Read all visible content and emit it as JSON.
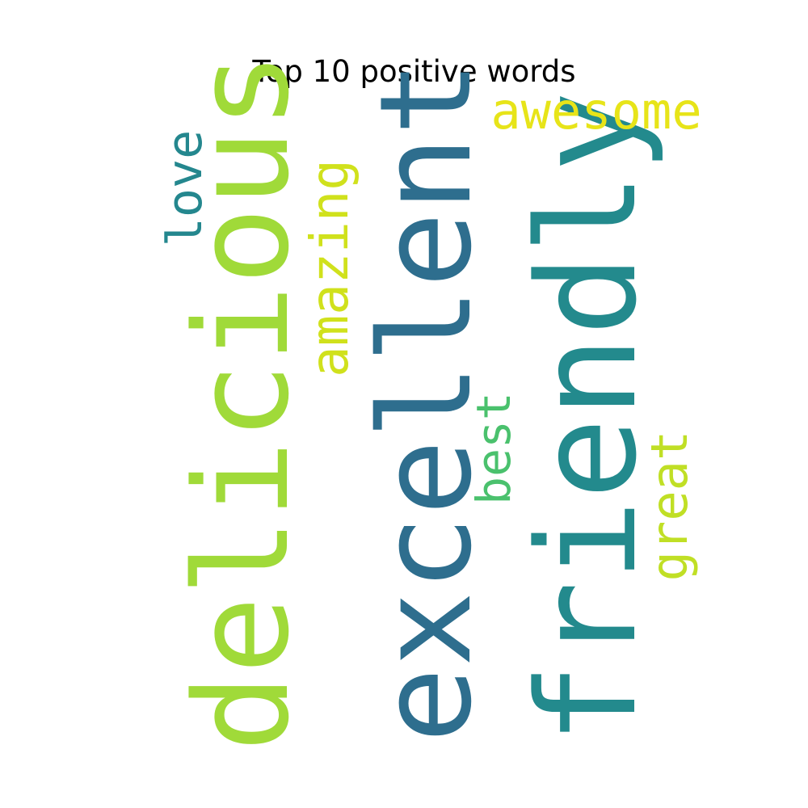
{
  "title": "Top 10 positive words",
  "words": [
    {
      "text": "friendly",
      "color": "#238a8d",
      "orientation": "vertical"
    },
    {
      "text": "excellent",
      "color": "#2e6e8e",
      "orientation": "vertical"
    },
    {
      "text": "delicious",
      "color": "#a0da39",
      "orientation": "vertical"
    },
    {
      "text": "awesome",
      "color": "#e7e419",
      "orientation": "horizontal"
    },
    {
      "text": "love",
      "color": "#24878e",
      "orientation": "vertical"
    },
    {
      "text": "amazing",
      "color": "#d0e11c",
      "orientation": "vertical"
    },
    {
      "text": "best",
      "color": "#4ac16d",
      "orientation": "vertical"
    },
    {
      "text": "great",
      "color": "#c0df25",
      "orientation": "vertical"
    }
  ]
}
